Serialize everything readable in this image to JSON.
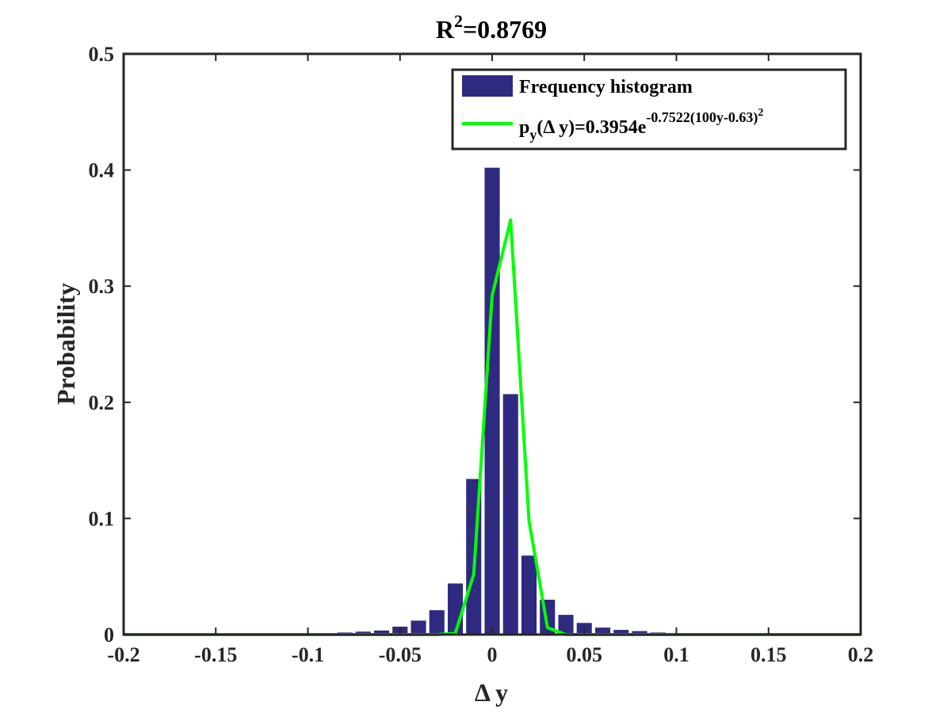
{
  "chart_data": {
    "type": "bar",
    "title": {
      "base": "R",
      "sup": "2",
      "rest": "=0.8769"
    },
    "xlabel": "Δ y",
    "ylabel": "Probability",
    "xlim": [
      -0.2,
      0.2
    ],
    "ylim": [
      0,
      0.5
    ],
    "xticks": [
      -0.2,
      -0.15,
      -0.1,
      -0.05,
      0,
      0.05,
      0.1,
      0.15,
      0.2
    ],
    "xtick_labels": [
      "-0.2",
      "-0.15",
      "-0.1",
      "-0.05",
      "0",
      "0.05",
      "0.1",
      "0.15",
      "0.2"
    ],
    "yticks": [
      0,
      0.1,
      0.2,
      0.3,
      0.4,
      0.5
    ],
    "ytick_labels": [
      "0",
      "0.1",
      "0.2",
      "0.3",
      "0.4",
      "0.5"
    ],
    "grid": false,
    "legend_position": "top-right",
    "colors": {
      "bars": "#2E2A7F",
      "fit": "#00FF00",
      "axes": "#262626"
    },
    "series": [
      {
        "name": "Frequency histogram",
        "kind": "bar",
        "bin_width": 0.01,
        "x": [
          -0.11,
          -0.1,
          -0.09,
          -0.08,
          -0.07,
          -0.06,
          -0.05,
          -0.04,
          -0.03,
          -0.02,
          -0.01,
          0,
          0.01,
          0.02,
          0.03,
          0.04,
          0.05,
          0.06,
          0.07,
          0.08,
          0.09,
          0.1,
          0.11,
          0.12
        ],
        "values": [
          0.0004,
          0.0008,
          0.0012,
          0.0018,
          0.0025,
          0.0035,
          0.0068,
          0.012,
          0.021,
          0.044,
          0.134,
          0.402,
          0.207,
          0.068,
          0.03,
          0.017,
          0.01,
          0.006,
          0.004,
          0.003,
          0.0018,
          0.0012,
          0.0008,
          0.0005
        ]
      },
      {
        "name_parts": {
          "p": "p",
          "sub": "y",
          "mid": "(Δ y)=0.3954e",
          "sup": "-0.7522(100y-0.63)",
          "sup2": "2"
        },
        "kind": "line",
        "x": [
          -0.2,
          -0.03,
          -0.02,
          -0.01,
          0,
          0.01,
          0.02,
          0.03,
          0.04,
          0.2
        ],
        "values": [
          0,
          0,
          0.001,
          0.052,
          0.292,
          0.357,
          0.098,
          0.006,
          0,
          0
        ]
      }
    ]
  }
}
